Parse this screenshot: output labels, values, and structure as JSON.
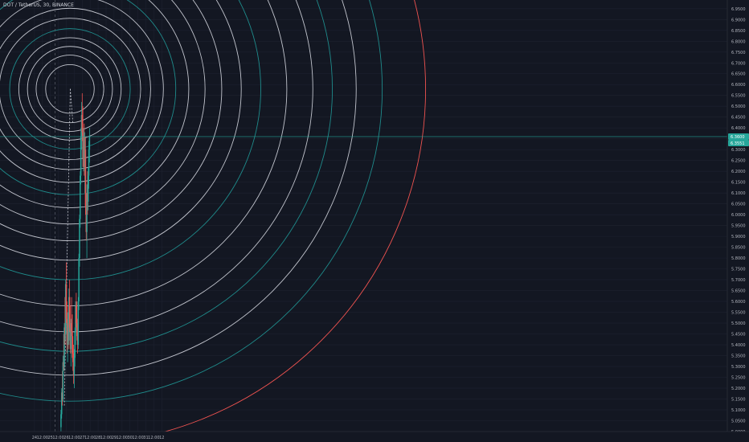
{
  "symbol_title": "DOT / TetherUS, 30, BINANCE",
  "colors": {
    "background": "#131722",
    "grid": "#1e2230",
    "up": "#26a69a",
    "down": "#ef5350",
    "ring_white": "#e0e3eb",
    "ring_teal": "#1f8b8b",
    "crosshair": "#26a69a"
  },
  "chart_data": {
    "type": "candlestick",
    "xlim": [
      -52,
      1045
    ],
    "ylim": [
      5.0,
      6.99
    ],
    "y_ticks": [
      "5.0000",
      "5.0500",
      "5.1000",
      "5.1500",
      "5.2000",
      "5.2500",
      "5.3000",
      "5.3500",
      "5.4000",
      "5.4500",
      "5.5000",
      "5.5500",
      "5.6000",
      "5.6500",
      "5.7000",
      "5.7500",
      "5.8000",
      "5.8500",
      "5.9000",
      "5.9500",
      "6.0000",
      "6.0500",
      "6.1000",
      "6.1500",
      "6.2000",
      "6.2500",
      "6.3000",
      "6.3500",
      "6.4000",
      "6.4500",
      "6.5000",
      "6.5500",
      "6.6000",
      "6.6500",
      "6.7000",
      "6.7500",
      "6.8000",
      "6.8500",
      "6.9000",
      "6.9500"
    ],
    "x_ticks": [
      {
        "x": 0,
        "label": "24"
      },
      {
        "x": 12,
        "label": "12:00"
      },
      {
        "x": 24,
        "label": "25"
      },
      {
        "x": 36,
        "label": "12:00"
      },
      {
        "x": 48,
        "label": "26"
      },
      {
        "x": 60,
        "label": "12:00"
      },
      {
        "x": 72,
        "label": "27"
      },
      {
        "x": 84,
        "label": "12:00"
      },
      {
        "x": 96,
        "label": "28"
      },
      {
        "x": 108,
        "label": "12:00"
      },
      {
        "x": 120,
        "label": "29"
      },
      {
        "x": 132,
        "label": "12:00"
      },
      {
        "x": 144,
        "label": "30"
      },
      {
        "x": 156,
        "label": "12:00"
      },
      {
        "x": 168,
        "label": "31"
      },
      {
        "x": 180,
        "label": "12:00"
      },
      {
        "x": 192,
        "label": "12"
      }
    ],
    "x_tick_hours_per_index": 0.5,
    "candles": [
      [
        5.02,
        5.1,
        5.0,
        5.08
      ],
      [
        5.08,
        5.2,
        5.06,
        5.18
      ],
      [
        5.18,
        5.28,
        5.12,
        5.15
      ],
      [
        5.15,
        5.35,
        5.14,
        5.32
      ],
      [
        5.32,
        5.45,
        5.28,
        5.3
      ],
      [
        5.3,
        5.5,
        5.28,
        5.48
      ],
      [
        5.48,
        5.62,
        5.4,
        5.45
      ],
      [
        5.45,
        5.7,
        5.42,
        5.68
      ],
      [
        5.68,
        5.78,
        5.5,
        5.52
      ],
      [
        5.52,
        5.6,
        5.36,
        5.4
      ],
      [
        5.4,
        5.55,
        5.32,
        5.5
      ],
      [
        5.5,
        5.58,
        5.38,
        5.42
      ],
      [
        5.42,
        5.66,
        5.4,
        5.62
      ],
      [
        5.62,
        5.7,
        5.46,
        5.48
      ],
      [
        5.48,
        5.58,
        5.36,
        5.38
      ],
      [
        5.38,
        5.52,
        5.3,
        5.5
      ],
      [
        5.5,
        5.62,
        5.44,
        5.46
      ],
      [
        5.46,
        5.54,
        5.34,
        5.36
      ],
      [
        5.36,
        5.44,
        5.28,
        5.32
      ],
      [
        5.32,
        5.4,
        5.22,
        5.26
      ],
      [
        5.26,
        5.38,
        5.2,
        5.34
      ],
      [
        5.34,
        5.48,
        5.3,
        5.46
      ],
      [
        5.46,
        5.6,
        5.4,
        5.58
      ],
      [
        5.58,
        5.64,
        5.48,
        5.5
      ],
      [
        5.5,
        5.6,
        5.42,
        5.44
      ],
      [
        5.44,
        5.52,
        5.36,
        5.4
      ],
      [
        5.4,
        5.62,
        5.38,
        5.6
      ],
      [
        5.6,
        5.82,
        5.56,
        5.8
      ],
      [
        5.8,
        6.0,
        5.76,
        5.98
      ],
      [
        5.98,
        6.2,
        5.94,
        6.18
      ],
      [
        6.18,
        6.4,
        6.14,
        6.36
      ],
      [
        6.36,
        6.52,
        6.3,
        6.46
      ],
      [
        6.46,
        6.56,
        6.34,
        6.38
      ],
      [
        6.38,
        6.5,
        6.22,
        6.26
      ],
      [
        6.26,
        6.4,
        6.2,
        6.36
      ],
      [
        6.36,
        6.42,
        6.18,
        6.22
      ],
      [
        6.22,
        6.38,
        6.1,
        6.3
      ],
      [
        6.3,
        6.36,
        6.0,
        6.04
      ],
      [
        6.04,
        6.1,
        5.88,
        5.92
      ],
      [
        5.92,
        6.14,
        5.8,
        6.1
      ],
      [
        6.1,
        6.2,
        6.0,
        6.06
      ],
      [
        6.06,
        6.22,
        6.02,
        6.18
      ],
      [
        6.18,
        6.34,
        6.12,
        6.3
      ],
      [
        6.3,
        6.4,
        6.24,
        6.36
      ]
    ],
    "price_line": 6.36,
    "price_labels": [
      "6.3600",
      "6.3551"
    ],
    "fib_circles": {
      "center": [
        53.5,
        6.58
      ],
      "rings": [
        {
          "r": 0.112,
          "kind": "white"
        },
        {
          "r": 0.156,
          "kind": "white"
        },
        {
          "r": 0.196,
          "kind": "white"
        },
        {
          "r": 0.236,
          "kind": "white"
        },
        {
          "r": 0.278,
          "kind": "teal"
        },
        {
          "r": 0.326,
          "kind": "white"
        },
        {
          "r": 0.372,
          "kind": "white"
        },
        {
          "r": 0.431,
          "kind": "white"
        },
        {
          "r": 0.488,
          "kind": "teal"
        },
        {
          "r": 0.548,
          "kind": "white"
        },
        {
          "r": 0.623,
          "kind": "white"
        },
        {
          "r": 0.7,
          "kind": "white"
        },
        {
          "r": 0.79,
          "kind": "white"
        },
        {
          "r": 0.88,
          "kind": "teal"
        },
        {
          "r": 1.0,
          "kind": "white"
        },
        {
          "r": 1.12,
          "kind": "white"
        },
        {
          "r": 1.21,
          "kind": "teal"
        },
        {
          "r": 1.32,
          "kind": "white"
        },
        {
          "r": 1.44,
          "kind": "teal"
        },
        {
          "r": 1.64,
          "kind": "red"
        }
      ]
    },
    "trend_lines": [
      {
        "from": [
          45.0,
          5.12
        ],
        "to": [
          54.0,
          6.58
        ],
        "style": "dashed"
      },
      {
        "from": [
          54.0,
          6.58
        ],
        "to": [
          58.0,
          6.42
        ],
        "style": "dashed"
      }
    ],
    "vertical_marker_x": 31.0
  }
}
